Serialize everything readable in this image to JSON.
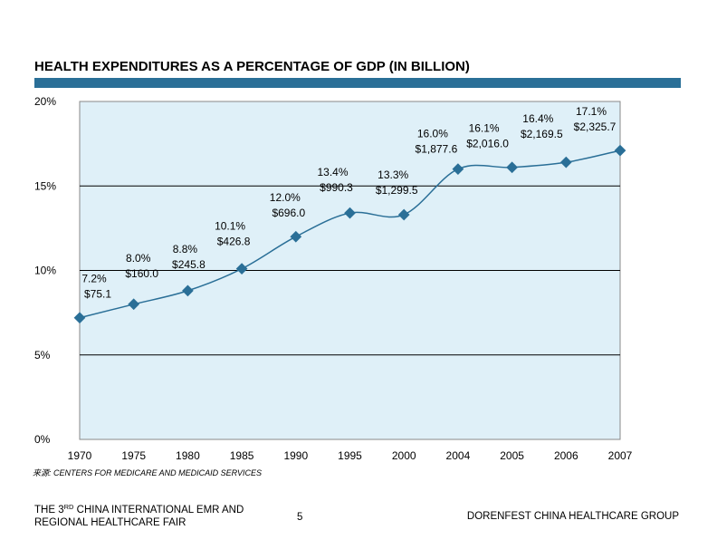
{
  "chart_data": {
    "type": "line",
    "title": "HEALTH EXPENDITURES AS A PERCENTAGE OF GDP (IN BILLION)",
    "categories": [
      "1970",
      "1975",
      "1980",
      "1985",
      "1990",
      "1995",
      "2000",
      "2004",
      "2005",
      "2006",
      "2007"
    ],
    "series": [
      {
        "name": "Health expenditures as % of GDP",
        "color": "#2a6f97",
        "values": [
          7.2,
          8.0,
          8.8,
          10.1,
          12.0,
          13.4,
          13.3,
          16.0,
          16.1,
          16.4,
          17.1
        ],
        "value_labels": [
          "7.2%",
          "8.0%",
          "8.8%",
          "10.1%",
          "12.0%",
          "13.4%",
          "13.3%",
          "16.0%",
          "16.1%",
          "16.4%",
          "17.1%"
        ],
        "spending_labels": [
          "$75.1",
          "$160.0",
          "$245.8",
          "$426.8",
          "$696.0",
          "$990.3",
          "$1,299.5",
          "$1,877.6",
          "$2,016.0",
          "$2,169.5",
          "$2,325.7"
        ]
      }
    ],
    "ylim": [
      0,
      20
    ],
    "yticks": [
      {
        "value": 0,
        "label": "0%"
      },
      {
        "value": 5,
        "label": "5%"
      },
      {
        "value": 10,
        "label": "10%"
      },
      {
        "value": 15,
        "label": "15%"
      },
      {
        "value": 20,
        "label": "20%"
      }
    ],
    "grid": true,
    "source": "来源: CENTERS FOR MEDICARE AND MEDICAID SERVICES"
  },
  "footer": {
    "left_line1": [
      "THE 3",
      "RD",
      " CHINA INTERNATIONAL EMR AND"
    ],
    "left_line2": "REGIONAL HEALTHCARE FAIR",
    "page": "5",
    "right": "DORENFEST CHINA HEALTHCARE GROUP"
  }
}
